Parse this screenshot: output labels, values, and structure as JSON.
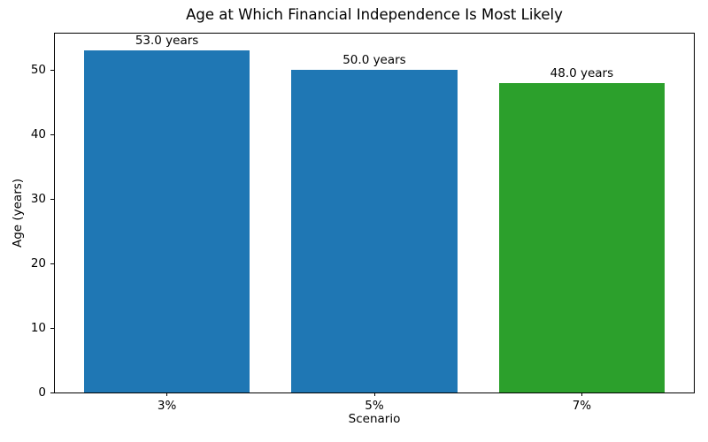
{
  "chart_data": {
    "type": "bar",
    "title": "Age at Which Financial Independence Is Most Likely",
    "xlabel": "Scenario",
    "ylabel": "Age (years)",
    "categories": [
      "3%",
      "5%",
      "7%"
    ],
    "values": [
      53.0,
      50.0,
      48.0
    ],
    "bar_labels": [
      "53.0 years",
      "50.0 years",
      "48.0 years"
    ],
    "bar_colors": [
      "#1f77b4",
      "#1f77b4",
      "#2ca02c"
    ],
    "ylim": [
      0,
      55.65
    ],
    "yticks": [
      0,
      10,
      20,
      30,
      40,
      50
    ],
    "bar_width_fraction": 0.8,
    "grid": false,
    "legend": false,
    "background_color": "#ffffff",
    "axis_color": "#000000"
  }
}
